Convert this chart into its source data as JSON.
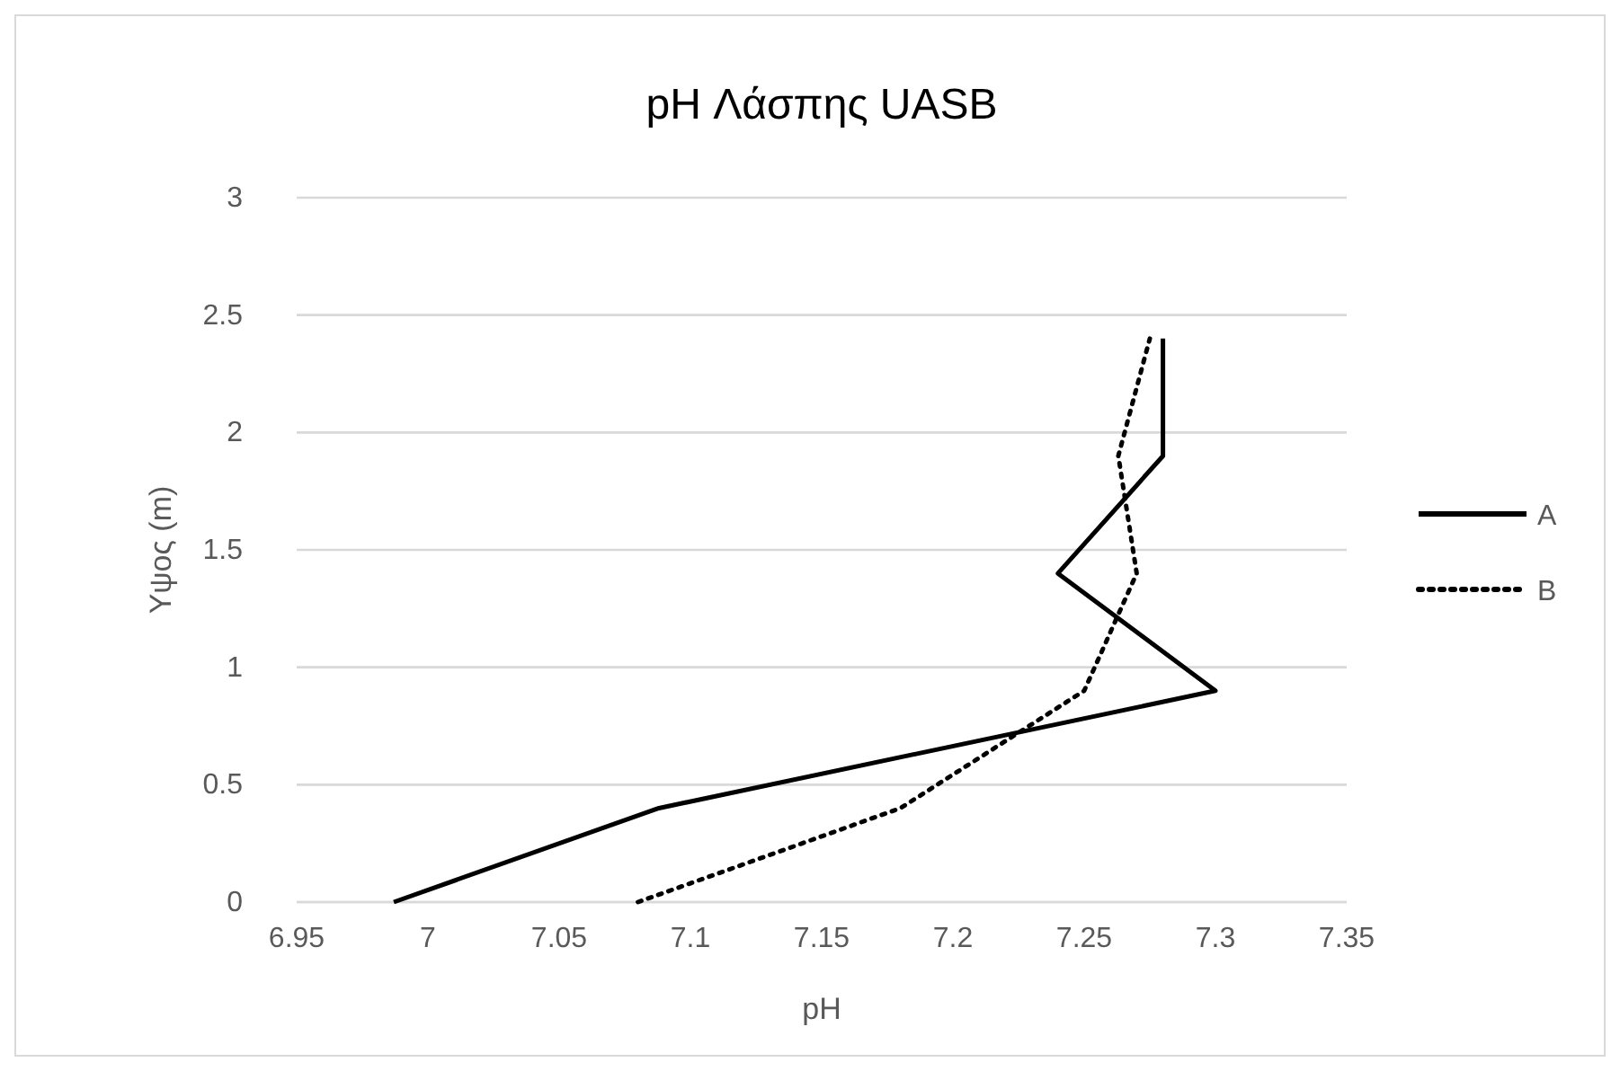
{
  "chart_data": {
    "type": "line",
    "title": "pH Λάσπης UASB",
    "xlabel": "pH",
    "ylabel": "Υψος (m)",
    "xlim": [
      6.95,
      7.35
    ],
    "xticks": [
      6.95,
      7,
      7.05,
      7.1,
      7.15,
      7.2,
      7.25,
      7.3,
      7.35
    ],
    "ylim": [
      0,
      3
    ],
    "yticks": [
      0,
      0.5,
      1,
      1.5,
      2,
      2.5,
      3
    ],
    "grid": "y",
    "legend": "right",
    "marker": "none",
    "series": [
      {
        "name": "A",
        "color": "#000000",
        "line_style": "solid",
        "x": [
          6.987,
          7.088,
          7.3,
          7.24,
          7.28,
          7.28
        ],
        "values": [
          0,
          0.4,
          0.9,
          1.4,
          1.9,
          2.4
        ]
      },
      {
        "name": "B",
        "color": "#000000",
        "line_style": "dotted",
        "x": [
          7.08,
          7.18,
          7.25,
          7.27,
          7.263,
          7.275
        ],
        "values": [
          0,
          0.4,
          0.9,
          1.4,
          1.9,
          2.4
        ]
      }
    ]
  }
}
